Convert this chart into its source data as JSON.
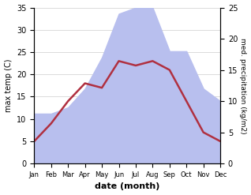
{
  "months": [
    "Jan",
    "Feb",
    "Mar",
    "Apr",
    "May",
    "Jun",
    "Jul",
    "Aug",
    "Sep",
    "Oct",
    "Nov",
    "Dec"
  ],
  "month_positions": [
    1,
    2,
    3,
    4,
    5,
    6,
    7,
    8,
    9,
    10,
    11,
    12
  ],
  "temperature": [
    5,
    9,
    14,
    18,
    17,
    23,
    22,
    23,
    21,
    14,
    7,
    5
  ],
  "precipitation": [
    8,
    8,
    9,
    12,
    17,
    24,
    25,
    25,
    18,
    18,
    12,
    10
  ],
  "temp_color": "#b03040",
  "precip_color": "#b8bfee",
  "temp_ylim": [
    0,
    35
  ],
  "temp_yticks": [
    0,
    5,
    10,
    15,
    20,
    25,
    30,
    35
  ],
  "precip_ylim": [
    0,
    25
  ],
  "precip_yticks": [
    0,
    5,
    10,
    15,
    20,
    25
  ],
  "xlabel": "date (month)",
  "ylabel_left": "max temp (C)",
  "ylabel_right": "med. precipitation (kg/m2)",
  "bg_color": "#ffffff",
  "linewidth": 1.8,
  "grid_color": "#cccccc"
}
